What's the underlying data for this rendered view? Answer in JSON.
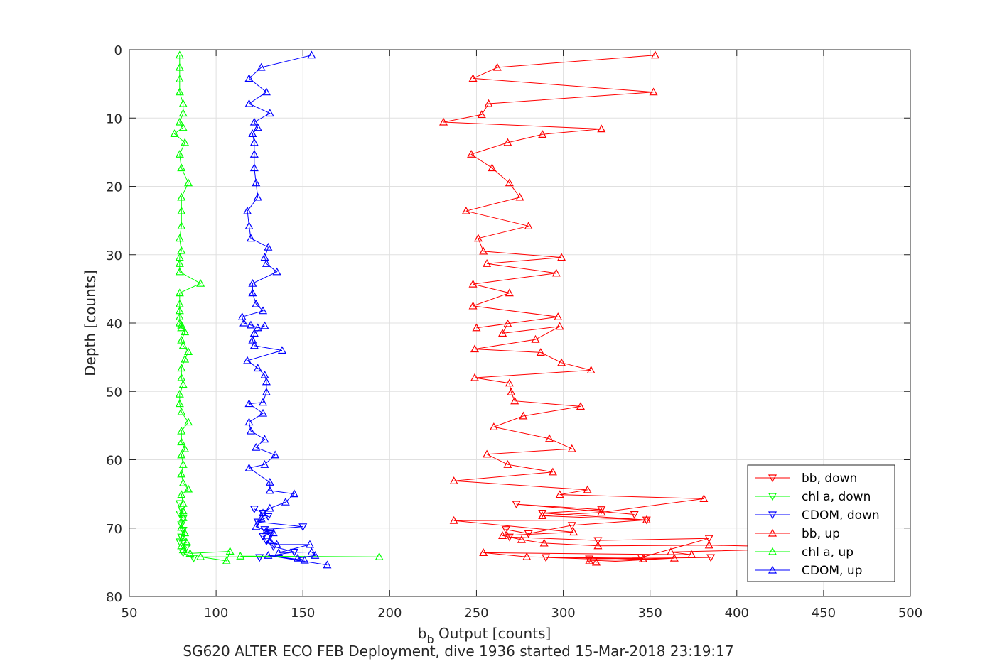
{
  "chart_data": {
    "type": "line",
    "xlabel_main": "b",
    "xlabel_sub": "b",
    "xlabel_rest": " Output [counts]",
    "ylabel": "Depth [counts]",
    "subtitle": "SG620 ALTER ECO FEB Deployment, dive 1936 started 15-Mar-2018 23:19:17",
    "xlim": [
      50,
      500
    ],
    "ylim": [
      0,
      80
    ],
    "y_reversed": true,
    "grid": true,
    "legend_position": "lower-right",
    "xticks": [
      50,
      100,
      150,
      200,
      250,
      300,
      350,
      400,
      450,
      500
    ],
    "yticks": [
      0,
      10,
      20,
      30,
      40,
      50,
      60,
      70,
      80
    ],
    "series": [
      {
        "name": "bb, down",
        "color": "#ff0000",
        "marker": "down",
        "points": [
          [
            385,
            74.3
          ],
          [
            315,
            74.5
          ],
          [
            290,
            74.3
          ],
          [
            345,
            74.3
          ],
          [
            384,
            71.5
          ],
          [
            320,
            71.8
          ],
          [
            269,
            71.3
          ],
          [
            267,
            70.2
          ],
          [
            280,
            70.8
          ],
          [
            305,
            69.6
          ],
          [
            348,
            68.8
          ],
          [
            288,
            67.8
          ],
          [
            322,
            67.3
          ],
          [
            273,
            66.5
          ],
          [
            341,
            68
          ]
        ]
      },
      {
        "name": "chl a, down",
        "color": "#00ff00",
        "marker": "down",
        "points": [
          [
            87,
            74.4
          ],
          [
            81,
            73.6
          ],
          [
            83,
            72.8
          ],
          [
            79,
            72
          ],
          [
            80,
            71.3
          ],
          [
            81,
            70.3
          ],
          [
            80,
            69.5
          ],
          [
            81,
            68.6
          ],
          [
            79,
            67.9
          ],
          [
            80,
            67.2
          ],
          [
            79,
            66.4
          ]
        ]
      },
      {
        "name": "CDOM, down",
        "color": "#0000ff",
        "marker": "down",
        "points": [
          [
            125,
            74.3
          ],
          [
            145,
            73.5
          ],
          [
            133,
            72.7
          ],
          [
            129,
            71.9
          ],
          [
            127,
            71.2
          ],
          [
            131,
            70.8
          ],
          [
            128,
            70.2
          ],
          [
            150,
            69.8
          ],
          [
            124,
            69.1
          ],
          [
            130,
            68.3
          ],
          [
            127,
            67.8
          ],
          [
            122,
            67.2
          ]
        ]
      },
      {
        "name": "bb, up",
        "color": "#ff0000",
        "marker": "up",
        "points": [
          [
            353,
            0.8
          ],
          [
            262,
            2.6
          ],
          [
            248,
            4.2
          ],
          [
            352,
            6.2
          ],
          [
            257,
            7.9
          ],
          [
            253,
            9.5
          ],
          [
            231,
            10.6
          ],
          [
            322,
            11.6
          ],
          [
            288,
            12.4
          ],
          [
            268,
            13.6
          ],
          [
            247,
            15.3
          ],
          [
            259,
            17.3
          ],
          [
            269,
            19.5
          ],
          [
            275,
            21.6
          ],
          [
            244,
            23.6
          ],
          [
            280,
            25.8
          ],
          [
            251,
            27.6
          ],
          [
            254,
            29.5
          ],
          [
            299,
            30.4
          ],
          [
            256,
            31.3
          ],
          [
            296,
            32.7
          ],
          [
            248,
            34.3
          ],
          [
            269,
            35.6
          ],
          [
            248,
            37.5
          ],
          [
            297,
            39.1
          ],
          [
            250,
            40.7
          ],
          [
            268,
            40.1
          ],
          [
            265,
            41.5
          ],
          [
            298,
            40.5
          ],
          [
            284,
            42.4
          ],
          [
            249,
            43.8
          ],
          [
            287,
            44.3
          ],
          [
            299,
            45.8
          ],
          [
            316,
            46.9
          ],
          [
            249,
            48
          ],
          [
            269,
            48.8
          ],
          [
            270,
            50.1
          ],
          [
            272,
            51.4
          ],
          [
            310,
            52.2
          ],
          [
            277,
            53.6
          ],
          [
            260,
            55.2
          ],
          [
            292,
            56.9
          ],
          [
            305,
            58.4
          ],
          [
            256,
            59.2
          ],
          [
            268,
            60.7
          ],
          [
            294,
            61.8
          ],
          [
            237,
            63.1
          ],
          [
            314,
            64.4
          ],
          [
            298,
            65.1
          ],
          [
            381,
            65.7
          ],
          [
            322,
            67.7
          ],
          [
            288,
            68.2
          ],
          [
            348,
            68.8
          ],
          [
            237,
            68.9
          ],
          [
            306,
            70.6
          ],
          [
            265,
            71.1
          ],
          [
            276,
            71.7
          ],
          [
            289,
            72.2
          ],
          [
            320,
            72.6
          ],
          [
            384,
            72.5
          ],
          [
            460,
            72.9
          ],
          [
            362,
            73.5
          ],
          [
            374,
            73.9
          ],
          [
            254,
            73.6
          ],
          [
            279,
            74.2
          ],
          [
            346,
            74.5
          ],
          [
            315,
            74.8
          ],
          [
            364,
            74.4
          ],
          [
            319,
            75
          ]
        ]
      },
      {
        "name": "chl a, up",
        "color": "#00ff00",
        "marker": "up",
        "points": [
          [
            79,
            0.8
          ],
          [
            79,
            2.6
          ],
          [
            79,
            4.3
          ],
          [
            79,
            6.2
          ],
          [
            81,
            7.9
          ],
          [
            81,
            9.3
          ],
          [
            79,
            10.6
          ],
          [
            81,
            11.4
          ],
          [
            76,
            12.3
          ],
          [
            82,
            13.6
          ],
          [
            79,
            15.3
          ],
          [
            80,
            17.3
          ],
          [
            84,
            19.5
          ],
          [
            80,
            21.6
          ],
          [
            80,
            23.6
          ],
          [
            80,
            25.8
          ],
          [
            79,
            27.6
          ],
          [
            80,
            29.4
          ],
          [
            79,
            30.4
          ],
          [
            79,
            31.3
          ],
          [
            79,
            32.5
          ],
          [
            91,
            34.2
          ],
          [
            79,
            35.6
          ],
          [
            79,
            37.2
          ],
          [
            79,
            38.2
          ],
          [
            79,
            39.1
          ],
          [
            79,
            40.0
          ],
          [
            80,
            40.3
          ],
          [
            80,
            40.7
          ],
          [
            82,
            41.3
          ],
          [
            80,
            42.5
          ],
          [
            81,
            43.3
          ],
          [
            84,
            44.2
          ],
          [
            82,
            45.3
          ],
          [
            80,
            46.6
          ],
          [
            80,
            48
          ],
          [
            81,
            49
          ],
          [
            79,
            50.4
          ],
          [
            79,
            51.8
          ],
          [
            80,
            53
          ],
          [
            84,
            54.5
          ],
          [
            80,
            55.8
          ],
          [
            80,
            57.4
          ],
          [
            82,
            58.4
          ],
          [
            80,
            59.3
          ],
          [
            81,
            60.7
          ],
          [
            80,
            62.1
          ],
          [
            81,
            63.4
          ],
          [
            84,
            64.3
          ],
          [
            80,
            65.1
          ],
          [
            81,
            66.4
          ],
          [
            81,
            67.5
          ],
          [
            81,
            68.5
          ],
          [
            80,
            69.9
          ],
          [
            82,
            70.7
          ],
          [
            81,
            71.4
          ],
          [
            83,
            72.1
          ],
          [
            80,
            72.6
          ],
          [
            81,
            73.2
          ],
          [
            85,
            73.7
          ],
          [
            108,
            73.4
          ],
          [
            106,
            74.8
          ],
          [
            91,
            74.2
          ],
          [
            194,
            74.2
          ],
          [
            114,
            74.1
          ]
        ]
      },
      {
        "name": "CDOM, up",
        "color": "#0000ff",
        "marker": "up",
        "points": [
          [
            155,
            0.8
          ],
          [
            126,
            2.6
          ],
          [
            119,
            4.2
          ],
          [
            129,
            6.2
          ],
          [
            119,
            7.9
          ],
          [
            131,
            9.3
          ],
          [
            122,
            10.6
          ],
          [
            124,
            11.4
          ],
          [
            121,
            12.3
          ],
          [
            122,
            13.6
          ],
          [
            122,
            15.3
          ],
          [
            122,
            17.3
          ],
          [
            123,
            19.5
          ],
          [
            124,
            21.6
          ],
          [
            118,
            23.6
          ],
          [
            119,
            25.8
          ],
          [
            120,
            27.6
          ],
          [
            130,
            28.9
          ],
          [
            128,
            30.4
          ],
          [
            129,
            31.3
          ],
          [
            135,
            32.5
          ],
          [
            121,
            34.2
          ],
          [
            121,
            35.6
          ],
          [
            123,
            37.2
          ],
          [
            127,
            38.2
          ],
          [
            115,
            39.1
          ],
          [
            116,
            40.0
          ],
          [
            120,
            40.3
          ],
          [
            124,
            40.7
          ],
          [
            128,
            40.4
          ],
          [
            122,
            41.5
          ],
          [
            121,
            42.5
          ],
          [
            122,
            43.3
          ],
          [
            138,
            44
          ],
          [
            118,
            45.5
          ],
          [
            124,
            46.6
          ],
          [
            128,
            47.6
          ],
          [
            129,
            48.6
          ],
          [
            129,
            50.1
          ],
          [
            127,
            51.6
          ],
          [
            119,
            51.8
          ],
          [
            127,
            53.2
          ],
          [
            119,
            54.5
          ],
          [
            120,
            55.8
          ],
          [
            128,
            57
          ],
          [
            123,
            58.2
          ],
          [
            134,
            59.3
          ],
          [
            128,
            60.7
          ],
          [
            119,
            61.2
          ],
          [
            131,
            63.3
          ],
          [
            131,
            64.5
          ],
          [
            145,
            65
          ],
          [
            140,
            66.2
          ],
          [
            131,
            67.1
          ],
          [
            127,
            67.8
          ],
          [
            126,
            68.6
          ],
          [
            123,
            69.8
          ],
          [
            129,
            70.4
          ],
          [
            133,
            70.7
          ],
          [
            131,
            71.8
          ],
          [
            135,
            72.4
          ],
          [
            154,
            72.4
          ],
          [
            136,
            73.6
          ],
          [
            155,
            73.5
          ],
          [
            157,
            74
          ],
          [
            147,
            74.4
          ],
          [
            151,
            74.7
          ],
          [
            130,
            74
          ],
          [
            164,
            75.4
          ]
        ]
      }
    ]
  }
}
